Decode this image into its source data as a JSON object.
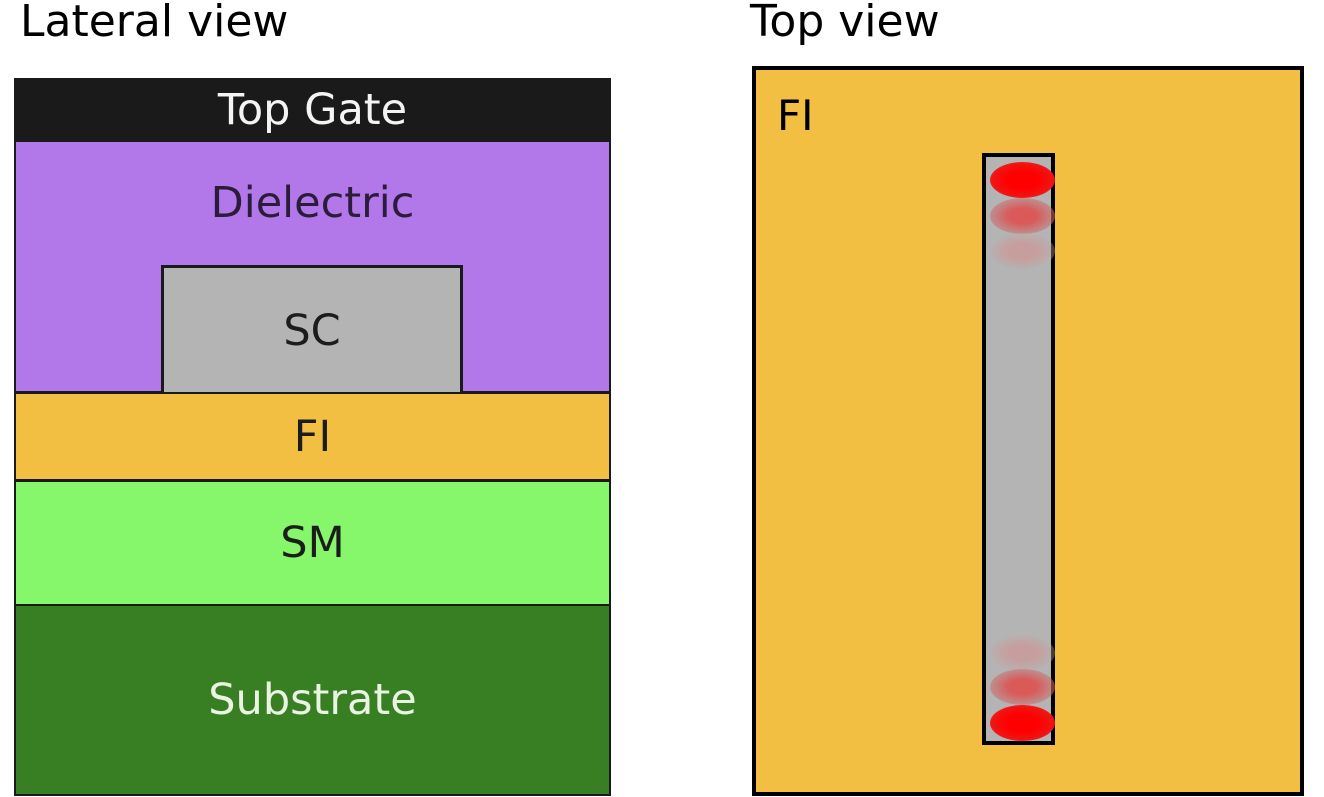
{
  "lateral_view": {
    "title": "Lateral view",
    "layers": {
      "top_gate": "Top Gate",
      "dielectric": "Dielectric",
      "sc": "SC",
      "fi": "FI",
      "sm": "SM",
      "substrate": "Substrate"
    }
  },
  "top_view": {
    "title": "Top view",
    "fi_label": "FI"
  },
  "colors": {
    "top_gate": "#1a1a1a",
    "dielectric": "#b277e9",
    "sc": "#b4b4b4",
    "fi": "#f2bf43",
    "sm": "#86f76a",
    "substrate": "#387e23",
    "mode": "#ff0000"
  }
}
